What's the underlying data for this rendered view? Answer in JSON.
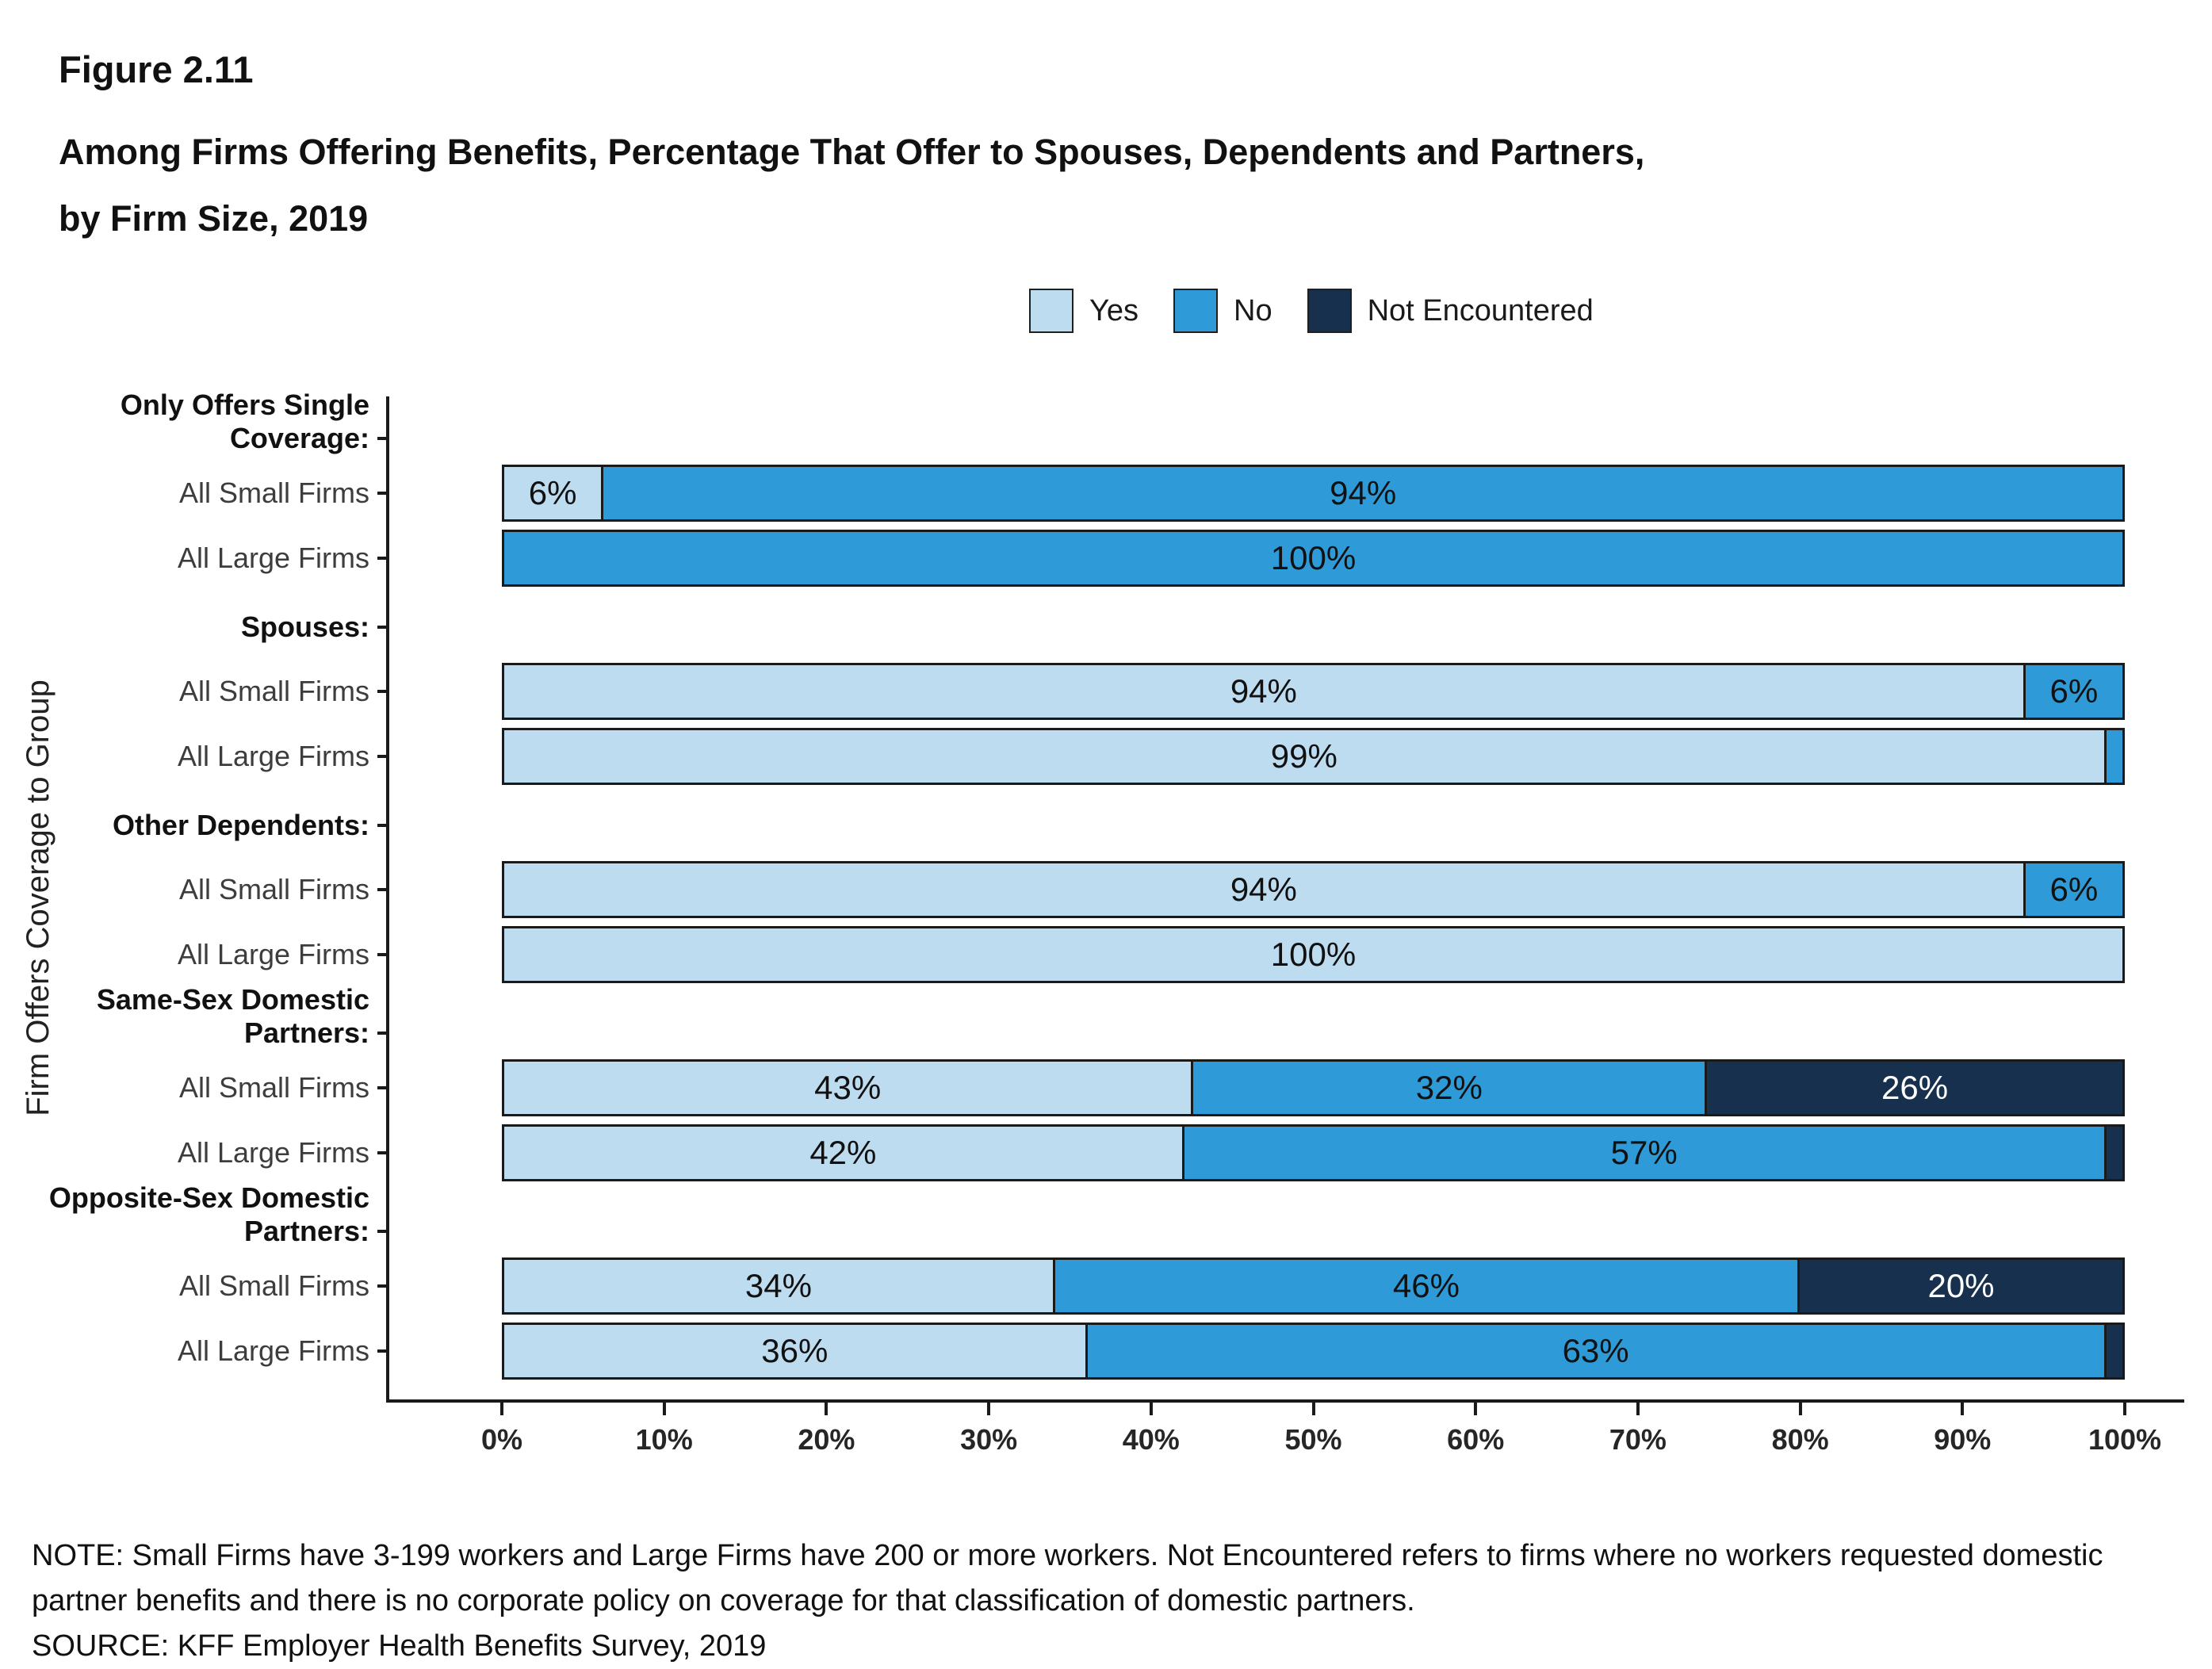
{
  "figure": {
    "title": "Figure 2.11",
    "subtitle_line1": "Among Firms Offering Benefits, Percentage That Offer to Spouses, Dependents and Partners,",
    "subtitle_line2": "by Firm Size, 2019"
  },
  "legend": {
    "items": [
      {
        "label": "Yes",
        "color": "#BDDCF0",
        "text_color": "#111111"
      },
      {
        "label": "No",
        "color": "#2E9BD8",
        "text_color": "#111111"
      },
      {
        "label": "Not Encountered",
        "color": "#16304E",
        "text_color": "#ffffff"
      }
    ]
  },
  "y_axis": {
    "label": "Firm Offers Coverage to Group"
  },
  "x_axis": {
    "ticks": [
      "0%",
      "10%",
      "20%",
      "30%",
      "40%",
      "50%",
      "60%",
      "70%",
      "80%",
      "90%",
      "100%"
    ]
  },
  "chart_data": {
    "type": "bar",
    "orientation": "horizontal",
    "stacked": true,
    "unit": "percent",
    "title": "Among Firms Offering Benefits, Percentage That Offer to Spouses, Dependents and Partners, by Firm Size, 2019",
    "xlabel": "",
    "ylabel": "Firm Offers Coverage to Group",
    "xlim": [
      0,
      100
    ],
    "series_names": [
      "Yes",
      "No",
      "Not Encountered"
    ],
    "groups": [
      {
        "header": "Only Offers Single Coverage:",
        "header_lines": [
          "Only Offers Single",
          "Coverage:"
        ],
        "rows": [
          {
            "label": "All Small Firms",
            "segments": [
              {
                "series": "Yes",
                "value": 6,
                "label": "6%"
              },
              {
                "series": "No",
                "value": 94,
                "label": "94%"
              }
            ]
          },
          {
            "label": "All Large Firms",
            "segments": [
              {
                "series": "No",
                "value": 100,
                "label": "100%"
              }
            ]
          }
        ]
      },
      {
        "header": "Spouses:",
        "header_lines": [
          "Spouses:"
        ],
        "rows": [
          {
            "label": "All Small Firms",
            "segments": [
              {
                "series": "Yes",
                "value": 94,
                "label": "94%"
              },
              {
                "series": "No",
                "value": 6,
                "label": "6%"
              }
            ]
          },
          {
            "label": "All Large Firms",
            "segments": [
              {
                "series": "Yes",
                "value": 99,
                "label": "99%"
              },
              {
                "series": "No",
                "value": 1,
                "label": ""
              }
            ]
          }
        ]
      },
      {
        "header": "Other Dependents:",
        "header_lines": [
          "Other Dependents:"
        ],
        "rows": [
          {
            "label": "All Small Firms",
            "segments": [
              {
                "series": "Yes",
                "value": 94,
                "label": "94%"
              },
              {
                "series": "No",
                "value": 6,
                "label": "6%"
              }
            ]
          },
          {
            "label": "All Large Firms",
            "segments": [
              {
                "series": "Yes",
                "value": 100,
                "label": "100%"
              }
            ]
          }
        ]
      },
      {
        "header": "Same-Sex Domestic Partners:",
        "header_lines": [
          "Same-Sex Domestic",
          "Partners:"
        ],
        "rows": [
          {
            "label": "All Small Firms",
            "segments": [
              {
                "series": "Yes",
                "value": 43,
                "label": "43%"
              },
              {
                "series": "No",
                "value": 32,
                "label": "32%"
              },
              {
                "series": "Not Encountered",
                "value": 26,
                "label": "26%"
              }
            ]
          },
          {
            "label": "All Large Firms",
            "segments": [
              {
                "series": "Yes",
                "value": 42,
                "label": "42%"
              },
              {
                "series": "No",
                "value": 57,
                "label": "57%"
              },
              {
                "series": "Not Encountered",
                "value": 1,
                "label": ""
              }
            ]
          }
        ]
      },
      {
        "header": "Opposite-Sex Domestic Partners:",
        "header_lines": [
          "Opposite-Sex Domestic",
          "Partners:"
        ],
        "rows": [
          {
            "label": "All Small Firms",
            "segments": [
              {
                "series": "Yes",
                "value": 34,
                "label": "34%"
              },
              {
                "series": "No",
                "value": 46,
                "label": "46%"
              },
              {
                "series": "Not Encountered",
                "value": 20,
                "label": "20%"
              }
            ]
          },
          {
            "label": "All Large Firms",
            "segments": [
              {
                "series": "Yes",
                "value": 36,
                "label": "36%"
              },
              {
                "series": "No",
                "value": 63,
                "label": "63%"
              },
              {
                "series": "Not Encountered",
                "value": 1,
                "label": ""
              }
            ]
          }
        ]
      }
    ]
  },
  "notes": {
    "line1": "NOTE: Small Firms have 3-199 workers and Large Firms have 200 or more workers. Not Encountered refers to firms where no workers requested domestic",
    "line2": "partner benefits and there is no corporate policy on coverage for that classification of domestic partners.",
    "source": "SOURCE: KFF Employer Health Benefits Survey, 2019"
  }
}
